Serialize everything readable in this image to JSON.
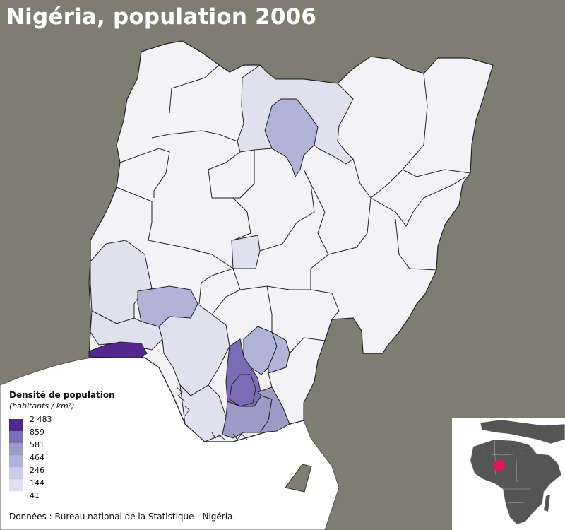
{
  "title": "Nigéria, population 2006",
  "legend": {
    "title": "Densité de population",
    "subtitle": "(habitants / km²)",
    "breaks": [
      "2 483",
      "859",
      "581",
      "464",
      "246",
      "144",
      "41"
    ],
    "colors": [
      "#54278f",
      "#7a6cb5",
      "#9e9ac8",
      "#b2b3d9",
      "#cbcbe5",
      "#e0e0ee",
      "#f2f2f7"
    ]
  },
  "source": "Données : Bureau national de la Statistique - Nigéria.",
  "colors": {
    "ocean": "#7d7d72",
    "land_outside": "#ffffff",
    "border": "#222222",
    "inset_highlight": "#e0185a",
    "inset_land": "#555555"
  },
  "icons": [
    "africa-locator-inset"
  ]
}
